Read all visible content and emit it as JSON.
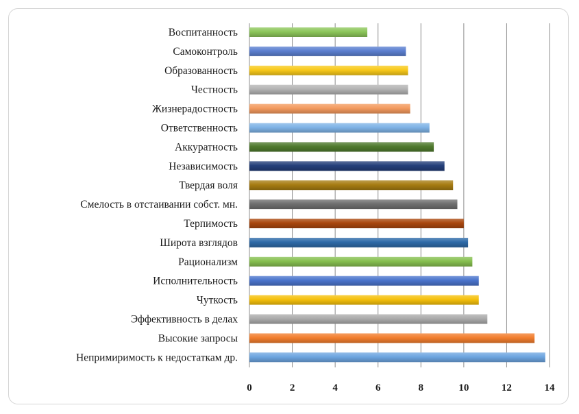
{
  "chart_data": {
    "type": "bar",
    "orientation": "horizontal",
    "title": "",
    "xlabel": "",
    "ylabel": "",
    "xlim": [
      0,
      14
    ],
    "xticks": [
      0,
      2,
      4,
      6,
      8,
      10,
      12,
      14
    ],
    "xtick_labels": [
      "0",
      "2",
      "4",
      "6",
      "8",
      "10",
      "12",
      "14"
    ],
    "grid": true,
    "categories": [
      "Воспитанность",
      "Самоконтроль",
      "Образованность",
      "Честность",
      "Жизнерадостность",
      "Ответственность",
      "Аккуратность",
      "Независимость",
      "Твердая воля",
      "Смелость в отстаивании собст. мн.",
      "Терпимость",
      "Широта взглядов",
      "Рационализм",
      "Исполнительность",
      "Чуткость",
      "Эффективность в делах",
      "Высокие запросы",
      "Непримиримость к недостаткам др."
    ],
    "values": [
      5.5,
      7.3,
      7.4,
      7.4,
      7.5,
      8.4,
      8.6,
      9.1,
      9.5,
      9.7,
      10.0,
      10.2,
      10.4,
      10.7,
      10.7,
      11.1,
      13.3,
      13.8
    ],
    "colors": [
      "#8cc65a",
      "#5b7fd0",
      "#f8c91a",
      "#b3b3b3",
      "#f39a5e",
      "#7fb3e6",
      "#4f7a2e",
      "#243f7a",
      "#a77c12",
      "#6f6f6f",
      "#a9470e",
      "#2e6aa8",
      "#86bf4f",
      "#4a74cc",
      "#f5c00c",
      "#ababab",
      "#f27e2e",
      "#6da5e0"
    ]
  }
}
